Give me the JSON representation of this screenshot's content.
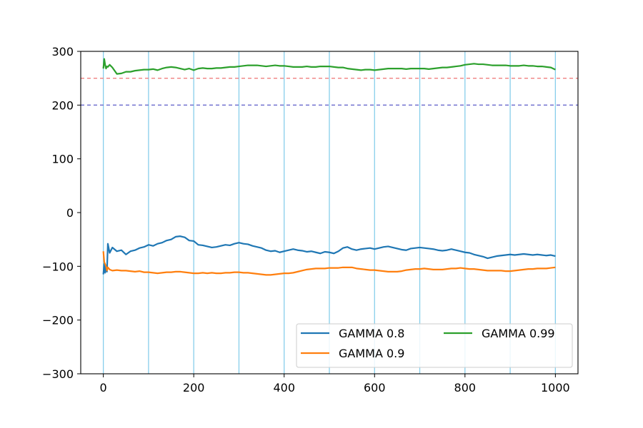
{
  "chart_data": {
    "type": "line",
    "title": "",
    "xlabel": "",
    "ylabel": "",
    "xlim": [
      -50,
      1050
    ],
    "ylim": [
      -300,
      300
    ],
    "x_ticks": [
      0,
      200,
      400,
      600,
      800,
      1000
    ],
    "x_tick_labels": [
      "0",
      "200",
      "400",
      "600",
      "800",
      "1000"
    ],
    "y_ticks": [
      -300,
      -200,
      -100,
      0,
      100,
      200,
      300
    ],
    "y_tick_labels": [
      "−300",
      "−200",
      "−100",
      "0",
      "100",
      "200",
      "300"
    ],
    "grid": false,
    "vertical_reference_lines": {
      "x": [
        0,
        100,
        200,
        300,
        400,
        500,
        600,
        700,
        800,
        900,
        1000
      ],
      "color": "#87ceeb"
    },
    "horizontal_reference_lines": [
      {
        "y": 250,
        "color": "#f08080",
        "style": "dashed"
      },
      {
        "y": 200,
        "color": "#6a6acd",
        "style": "dashed"
      }
    ],
    "legend": {
      "placement": "lower-right",
      "columns": 2
    },
    "series": [
      {
        "name": "GAMMA 0.8",
        "color": "#1f77b4",
        "x": [
          0,
          2,
          4,
          6,
          8,
          10,
          14,
          20,
          30,
          40,
          50,
          60,
          70,
          80,
          90,
          100,
          110,
          120,
          130,
          140,
          150,
          160,
          170,
          180,
          190,
          200,
          210,
          220,
          230,
          240,
          250,
          260,
          270,
          280,
          290,
          300,
          310,
          320,
          330,
          340,
          350,
          360,
          370,
          380,
          390,
          400,
          410,
          420,
          430,
          440,
          450,
          460,
          470,
          480,
          490,
          500,
          510,
          520,
          530,
          540,
          550,
          560,
          570,
          580,
          590,
          600,
          610,
          620,
          630,
          640,
          650,
          660,
          670,
          680,
          690,
          700,
          710,
          720,
          730,
          740,
          750,
          760,
          770,
          780,
          790,
          800,
          810,
          820,
          830,
          840,
          850,
          860,
          870,
          880,
          890,
          900,
          910,
          920,
          930,
          940,
          950,
          960,
          970,
          980,
          990,
          1000
        ],
        "values": [
          -115,
          -95,
          -112,
          -100,
          -110,
          -58,
          -75,
          -65,
          -72,
          -70,
          -78,
          -72,
          -70,
          -66,
          -64,
          -60,
          -62,
          -58,
          -56,
          -52,
          -50,
          -45,
          -44,
          -46,
          -52,
          -53,
          -60,
          -61,
          -63,
          -65,
          -64,
          -62,
          -60,
          -61,
          -58,
          -56,
          -58,
          -59,
          -62,
          -64,
          -66,
          -70,
          -72,
          -71,
          -74,
          -72,
          -70,
          -68,
          -70,
          -71,
          -73,
          -72,
          -74,
          -76,
          -73,
          -74,
          -76,
          -72,
          -66,
          -64,
          -68,
          -70,
          -68,
          -67,
          -66,
          -68,
          -66,
          -64,
          -63,
          -65,
          -67,
          -69,
          -70,
          -67,
          -66,
          -65,
          -66,
          -67,
          -68,
          -70,
          -71,
          -70,
          -68,
          -70,
          -72,
          -74,
          -75,
          -78,
          -80,
          -82,
          -85,
          -83,
          -81,
          -80,
          -79,
          -78,
          -79,
          -78,
          -77,
          -78,
          -79,
          -78,
          -79,
          -80,
          -79,
          -81
        ]
      },
      {
        "name": "GAMMA 0.9",
        "color": "#ff7f0e",
        "x": [
          0,
          2,
          4,
          6,
          8,
          10,
          14,
          20,
          30,
          40,
          50,
          60,
          70,
          80,
          90,
          100,
          110,
          120,
          130,
          140,
          150,
          160,
          170,
          180,
          190,
          200,
          210,
          220,
          230,
          240,
          250,
          260,
          270,
          280,
          290,
          300,
          310,
          320,
          330,
          340,
          350,
          360,
          370,
          380,
          390,
          400,
          410,
          420,
          430,
          440,
          450,
          460,
          470,
          480,
          490,
          500,
          510,
          520,
          530,
          540,
          550,
          560,
          570,
          580,
          590,
          600,
          610,
          620,
          630,
          640,
          650,
          660,
          670,
          680,
          690,
          700,
          710,
          720,
          730,
          740,
          750,
          760,
          770,
          780,
          790,
          800,
          810,
          820,
          830,
          840,
          850,
          860,
          870,
          880,
          890,
          900,
          910,
          920,
          930,
          940,
          950,
          960,
          970,
          980,
          990,
          1000
        ],
        "values": [
          -72,
          -92,
          -96,
          -100,
          -108,
          -102,
          -106,
          -108,
          -107,
          -108,
          -108,
          -109,
          -110,
          -109,
          -111,
          -111,
          -112,
          -113,
          -112,
          -111,
          -111,
          -110,
          -110,
          -111,
          -112,
          -113,
          -113,
          -112,
          -113,
          -112,
          -113,
          -113,
          -112,
          -112,
          -111,
          -111,
          -112,
          -112,
          -113,
          -114,
          -115,
          -116,
          -116,
          -115,
          -114,
          -113,
          -113,
          -112,
          -110,
          -108,
          -106,
          -105,
          -104,
          -104,
          -104,
          -103,
          -103,
          -103,
          -102,
          -102,
          -102,
          -104,
          -105,
          -106,
          -107,
          -107,
          -108,
          -109,
          -110,
          -110,
          -110,
          -109,
          -107,
          -106,
          -105,
          -105,
          -104,
          -105,
          -106,
          -106,
          -106,
          -105,
          -104,
          -104,
          -103,
          -104,
          -105,
          -105,
          -106,
          -107,
          -108,
          -108,
          -108,
          -108,
          -109,
          -109,
          -108,
          -107,
          -106,
          -105,
          -105,
          -104,
          -104,
          -104,
          -103,
          -102
        ]
      },
      {
        "name": "GAMMA 0.99",
        "color": "#2ca02c",
        "x": [
          0,
          2,
          4,
          6,
          8,
          10,
          14,
          20,
          30,
          40,
          50,
          60,
          70,
          80,
          90,
          100,
          110,
          120,
          130,
          140,
          150,
          160,
          170,
          180,
          190,
          200,
          210,
          220,
          230,
          240,
          250,
          260,
          270,
          280,
          290,
          300,
          310,
          320,
          330,
          340,
          350,
          360,
          370,
          380,
          390,
          400,
          410,
          420,
          430,
          440,
          450,
          460,
          470,
          480,
          490,
          500,
          510,
          520,
          530,
          540,
          550,
          560,
          570,
          580,
          590,
          600,
          610,
          620,
          630,
          640,
          650,
          660,
          670,
          680,
          690,
          700,
          710,
          720,
          730,
          740,
          750,
          760,
          770,
          780,
          790,
          800,
          810,
          820,
          830,
          840,
          850,
          860,
          870,
          880,
          890,
          900,
          910,
          920,
          930,
          940,
          950,
          960,
          970,
          980,
          990,
          1000
        ],
        "values": [
          268,
          286,
          275,
          268,
          272,
          271,
          275,
          270,
          258,
          259,
          262,
          262,
          264,
          265,
          266,
          266,
          267,
          265,
          268,
          270,
          271,
          270,
          268,
          266,
          268,
          265,
          268,
          269,
          268,
          268,
          269,
          269,
          270,
          271,
          271,
          272,
          273,
          274,
          274,
          274,
          273,
          272,
          273,
          274,
          273,
          273,
          272,
          271,
          271,
          271,
          272,
          271,
          271,
          272,
          272,
          272,
          271,
          270,
          270,
          268,
          267,
          266,
          265,
          266,
          266,
          265,
          266,
          267,
          268,
          268,
          268,
          268,
          267,
          268,
          268,
          268,
          268,
          267,
          268,
          269,
          270,
          270,
          271,
          272,
          273,
          275,
          276,
          277,
          276,
          276,
          275,
          274,
          274,
          274,
          274,
          273,
          273,
          273,
          274,
          273,
          273,
          272,
          272,
          271,
          270,
          266
        ]
      }
    ]
  }
}
